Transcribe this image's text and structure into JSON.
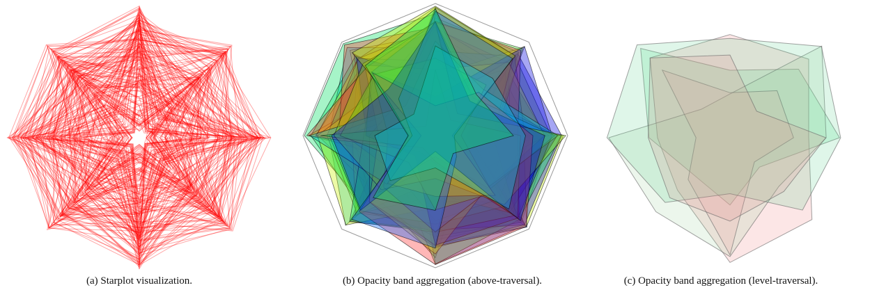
{
  "figure": {
    "panels": [
      {
        "caption": "(a)  Starplot visualization."
      },
      {
        "caption": "(b)  Opacity band aggregation (above-traversal)."
      },
      {
        "caption": "(c)  Opacity band aggregation (level-traversal)."
      }
    ]
  }
}
